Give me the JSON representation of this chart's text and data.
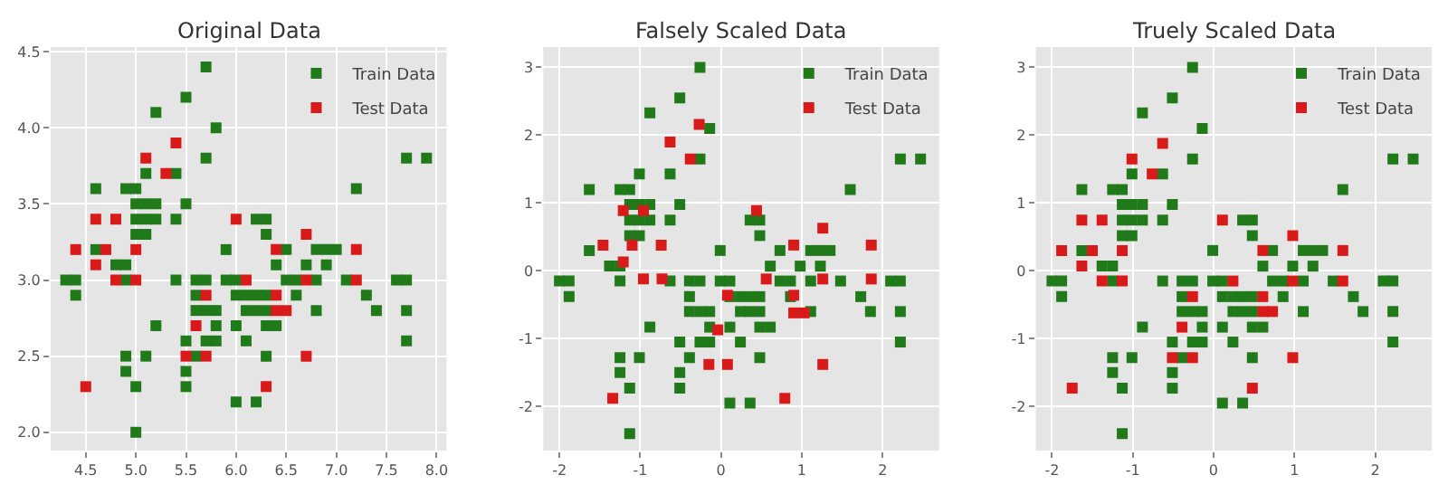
{
  "chart_data": [
    {
      "type": "scatter",
      "title": "Original Data",
      "marker": "square",
      "grid": true,
      "legend": "top right",
      "xlim": [
        4.15,
        8.1
      ],
      "ylim": [
        1.88,
        4.53
      ],
      "xticks": [
        {
          "value": 4.5,
          "label": "4.5"
        },
        {
          "value": 5.0,
          "label": "5.0"
        },
        {
          "value": 5.5,
          "label": "5.5"
        },
        {
          "value": 6.0,
          "label": "6.0"
        },
        {
          "value": 6.5,
          "label": "6.5"
        },
        {
          "value": 7.0,
          "label": "7.0"
        },
        {
          "value": 7.5,
          "label": "7.5"
        },
        {
          "value": 8.0,
          "label": "8.0"
        }
      ],
      "yticks": [
        {
          "value": 2.0,
          "label": "2.0"
        },
        {
          "value": 2.5,
          "label": "2.5"
        },
        {
          "value": 3.0,
          "label": "3.0"
        },
        {
          "value": 3.5,
          "label": "3.5"
        },
        {
          "value": 4.0,
          "label": "4.0"
        },
        {
          "value": 4.5,
          "label": "4.5"
        }
      ],
      "series": [
        {
          "name": "Train Data",
          "color": "#217a1a",
          "x": [
            5.7,
            5.5,
            5.2,
            5.8,
            5.7,
            7.7,
            7.9,
            5.1,
            5.4,
            4.6,
            4.9,
            5.0,
            7.2,
            5.0,
            5.1,
            5.2,
            5.5,
            5.0,
            5.1,
            5.2,
            5.4,
            6.2,
            6.3,
            5.0,
            5.1,
            6.3,
            4.6,
            5.9,
            6.5,
            6.8,
            6.9,
            7.0,
            4.8,
            4.9,
            6.4,
            6.7,
            6.9,
            4.3,
            4.4,
            4.9,
            5.4,
            5.6,
            5.7,
            5.9,
            6.0,
            6.5,
            6.6,
            6.8,
            7.1,
            7.6,
            7.7,
            4.4,
            5.6,
            6.0,
            6.1,
            6.2,
            6.3,
            6.6,
            7.3,
            5.6,
            5.7,
            5.8,
            6.1,
            6.2,
            6.3,
            6.8,
            7.4,
            7.7,
            5.2,
            5.8,
            6.0,
            6.3,
            6.4,
            5.5,
            5.7,
            5.8,
            6.1,
            7.7,
            4.9,
            5.1,
            5.6,
            6.3,
            4.9,
            5.5,
            5.0,
            5.5,
            6.0,
            6.2,
            5.0
          ],
          "values": [
            4.4,
            4.2,
            4.1,
            4.0,
            3.8,
            3.8,
            3.8,
            3.7,
            3.7,
            3.6,
            3.6,
            3.6,
            3.6,
            3.5,
            3.5,
            3.5,
            3.5,
            3.4,
            3.4,
            3.4,
            3.4,
            3.4,
            3.4,
            3.3,
            3.3,
            3.3,
            3.2,
            3.2,
            3.2,
            3.2,
            3.2,
            3.2,
            3.1,
            3.1,
            3.1,
            3.1,
            3.1,
            3.0,
            3.0,
            3.0,
            3.0,
            3.0,
            3.0,
            3.0,
            3.0,
            3.0,
            3.0,
            3.0,
            3.0,
            3.0,
            3.0,
            2.9,
            2.9,
            2.9,
            2.9,
            2.9,
            2.9,
            2.9,
            2.9,
            2.8,
            2.8,
            2.8,
            2.8,
            2.8,
            2.8,
            2.8,
            2.8,
            2.8,
            2.7,
            2.7,
            2.7,
            2.7,
            2.7,
            2.6,
            2.6,
            2.6,
            2.6,
            2.6,
            2.5,
            2.5,
            2.5,
            2.5,
            2.4,
            2.4,
            2.3,
            2.3,
            2.2,
            2.2,
            2.0
          ]
        },
        {
          "name": "Test Data",
          "color": "#d91a1a",
          "x": [
            5.4,
            5.1,
            5.3,
            4.6,
            4.8,
            6.0,
            6.7,
            4.4,
            4.7,
            5.0,
            6.4,
            7.2,
            4.6,
            4.8,
            5.0,
            6.1,
            6.7,
            7.2,
            5.7,
            6.4,
            6.4,
            6.5,
            5.6,
            5.5,
            5.7,
            6.7,
            4.5,
            6.3
          ],
          "values": [
            3.9,
            3.8,
            3.7,
            3.4,
            3.4,
            3.4,
            3.3,
            3.2,
            3.2,
            3.2,
            3.2,
            3.2,
            3.1,
            3.0,
            3.0,
            3.0,
            3.0,
            3.0,
            2.9,
            2.9,
            2.8,
            2.8,
            2.7,
            2.5,
            2.5,
            2.5,
            2.3,
            2.3
          ]
        }
      ]
    },
    {
      "type": "scatter",
      "title": "Falsely Scaled Data",
      "marker": "square",
      "grid": true,
      "legend": "top right",
      "xlim": [
        -2.2,
        2.7
      ],
      "ylim": [
        -2.65,
        3.3
      ],
      "xticks": [
        -2,
        -1,
        0,
        1,
        2
      ],
      "yticks": [
        -2,
        -1,
        0,
        1,
        2,
        3
      ],
      "series": [
        {
          "name": "Train Data",
          "color": "#217a1a",
          "x": [
            -0.26,
            -0.51,
            -0.88,
            -0.14,
            -0.26,
            2.22,
            2.47,
            -1.01,
            -0.63,
            -1.63,
            -1.25,
            -1.13,
            1.6,
            -1.13,
            -1.01,
            -0.88,
            -0.51,
            -1.13,
            -1.01,
            -0.88,
            -0.63,
            0.36,
            0.48,
            -1.13,
            -1.01,
            0.48,
            -1.63,
            -0.01,
            0.73,
            1.11,
            1.23,
            1.35,
            -1.38,
            -1.25,
            0.61,
            0.98,
            1.23,
            -2.0,
            -1.88,
            -1.25,
            -0.63,
            -0.39,
            -0.26,
            -0.01,
            0.11,
            0.73,
            0.86,
            1.11,
            1.48,
            2.1,
            2.22,
            -1.88,
            -0.39,
            0.11,
            0.24,
            0.36,
            0.48,
            0.86,
            1.73,
            -0.39,
            -0.26,
            -0.14,
            0.24,
            0.36,
            0.48,
            1.11,
            1.85,
            2.22,
            -0.88,
            -0.14,
            0.11,
            0.48,
            0.61,
            -0.51,
            -0.26,
            -0.14,
            0.24,
            2.22,
            -1.25,
            -1.01,
            -0.39,
            0.48,
            -1.25,
            -0.51,
            -1.13,
            -0.51,
            0.11,
            0.36,
            -1.13
          ],
          "values": [
            3.0,
            2.55,
            2.33,
            2.1,
            1.65,
            1.65,
            1.65,
            1.43,
            1.43,
            1.2,
            1.2,
            1.2,
            1.2,
            0.98,
            0.98,
            0.98,
            0.98,
            0.75,
            0.75,
            0.75,
            0.75,
            0.75,
            0.75,
            0.52,
            0.52,
            0.52,
            0.3,
            0.3,
            0.3,
            0.3,
            0.3,
            0.3,
            0.07,
            0.07,
            0.07,
            0.07,
            0.07,
            -0.15,
            -0.15,
            -0.15,
            -0.15,
            -0.15,
            -0.15,
            -0.15,
            -0.15,
            -0.15,
            -0.15,
            -0.15,
            -0.15,
            -0.15,
            -0.15,
            -0.38,
            -0.38,
            -0.38,
            -0.38,
            -0.38,
            -0.38,
            -0.38,
            -0.38,
            -0.6,
            -0.6,
            -0.6,
            -0.6,
            -0.6,
            -0.6,
            -0.6,
            -0.6,
            -0.6,
            -0.83,
            -0.83,
            -0.83,
            -0.83,
            -0.83,
            -1.05,
            -1.05,
            -1.05,
            -1.05,
            -1.05,
            -1.28,
            -1.28,
            -1.28,
            -1.28,
            -1.5,
            -1.5,
            -1.73,
            -1.73,
            -1.95,
            -1.95,
            -2.4
          ]
        },
        {
          "name": "Test Data",
          "color": "#d91a1a",
          "x": [
            -0.27,
            -0.63,
            -0.38,
            -1.21,
            -0.96,
            0.44,
            1.26,
            -1.46,
            -1.1,
            -0.74,
            0.9,
            1.86,
            -1.21,
            -0.96,
            -0.73,
            0.56,
            1.26,
            1.86,
            0.08,
            0.9,
            0.9,
            1.03,
            -0.04,
            -0.15,
            0.08,
            1.26,
            -1.34,
            0.79
          ],
          "values": [
            2.16,
            1.9,
            1.65,
            0.89,
            0.89,
            0.89,
            0.63,
            0.38,
            0.38,
            0.38,
            0.38,
            0.38,
            0.13,
            -0.12,
            -0.12,
            -0.12,
            -0.12,
            -0.12,
            -0.36,
            -0.36,
            -0.62,
            -0.62,
            -0.87,
            -1.38,
            -1.38,
            -1.38,
            -1.88,
            -1.88
          ]
        }
      ]
    },
    {
      "type": "scatter",
      "title": "Truely Scaled Data",
      "marker": "square",
      "grid": true,
      "legend": "top right",
      "xlim": [
        -2.2,
        2.7
      ],
      "ylim": [
        -2.65,
        3.3
      ],
      "xticks": [
        -2,
        -1,
        0,
        1,
        2
      ],
      "yticks": [
        -2,
        -1,
        0,
        1,
        2,
        3
      ],
      "series": [
        {
          "name": "Train Data",
          "color": "#217a1a",
          "x": [
            -0.26,
            -0.51,
            -0.88,
            -0.14,
            -0.26,
            2.22,
            2.47,
            -1.01,
            -0.63,
            -1.63,
            -1.25,
            -1.13,
            1.6,
            -1.13,
            -1.01,
            -0.88,
            -0.51,
            -1.13,
            -1.01,
            -0.88,
            -0.63,
            0.36,
            0.48,
            -1.13,
            -1.01,
            0.48,
            -1.63,
            -0.01,
            0.73,
            1.11,
            1.23,
            1.35,
            -1.38,
            -1.25,
            0.61,
            0.98,
            1.23,
            -2.0,
            -1.88,
            -1.25,
            -0.63,
            -0.39,
            -0.26,
            -0.01,
            0.11,
            0.73,
            0.86,
            1.11,
            1.48,
            2.1,
            2.22,
            -1.88,
            -0.39,
            0.11,
            0.24,
            0.36,
            0.48,
            0.86,
            1.73,
            -0.39,
            -0.26,
            -0.14,
            0.24,
            0.36,
            0.48,
            1.11,
            1.85,
            2.22,
            -0.88,
            -0.14,
            0.11,
            0.48,
            0.61,
            -0.51,
            -0.26,
            -0.14,
            0.24,
            2.22,
            -1.25,
            -1.01,
            -0.39,
            0.48,
            -1.25,
            -0.51,
            -1.13,
            -0.51,
            0.11,
            0.36,
            -1.13
          ],
          "values": [
            3.0,
            2.55,
            2.33,
            2.1,
            1.65,
            1.65,
            1.65,
            1.43,
            1.43,
            1.2,
            1.2,
            1.2,
            1.2,
            0.98,
            0.98,
            0.98,
            0.98,
            0.75,
            0.75,
            0.75,
            0.75,
            0.75,
            0.75,
            0.52,
            0.52,
            0.52,
            0.3,
            0.3,
            0.3,
            0.3,
            0.3,
            0.3,
            0.07,
            0.07,
            0.07,
            0.07,
            0.07,
            -0.15,
            -0.15,
            -0.15,
            -0.15,
            -0.15,
            -0.15,
            -0.15,
            -0.15,
            -0.15,
            -0.15,
            -0.15,
            -0.15,
            -0.15,
            -0.15,
            -0.38,
            -0.38,
            -0.38,
            -0.38,
            -0.38,
            -0.38,
            -0.38,
            -0.38,
            -0.6,
            -0.6,
            -0.6,
            -0.6,
            -0.6,
            -0.6,
            -0.6,
            -0.6,
            -0.6,
            -0.83,
            -0.83,
            -0.83,
            -0.83,
            -0.83,
            -1.05,
            -1.05,
            -1.05,
            -1.05,
            -1.05,
            -1.28,
            -1.28,
            -1.28,
            -1.28,
            -1.5,
            -1.5,
            -1.73,
            -1.73,
            -1.95,
            -1.95,
            -2.4
          ]
        },
        {
          "name": "Test Data",
          "color": "#d91a1a",
          "x": [
            -0.63,
            -1.01,
            -0.76,
            -1.63,
            -1.38,
            0.11,
            0.98,
            -1.88,
            -1.5,
            -1.13,
            0.61,
            1.6,
            -1.63,
            -1.38,
            -1.13,
            0.24,
            0.98,
            1.6,
            -0.26,
            0.61,
            0.61,
            0.73,
            -0.39,
            -0.51,
            -0.26,
            0.98,
            -1.75,
            0.48
          ],
          "values": [
            1.88,
            1.65,
            1.43,
            0.75,
            0.75,
            0.75,
            0.52,
            0.3,
            0.3,
            0.3,
            0.3,
            0.3,
            0.07,
            -0.15,
            -0.15,
            -0.15,
            -0.15,
            -0.15,
            -0.38,
            -0.38,
            -0.6,
            -0.6,
            -0.83,
            -1.28,
            -1.28,
            -1.28,
            -1.73,
            -1.73
          ]
        }
      ]
    }
  ]
}
